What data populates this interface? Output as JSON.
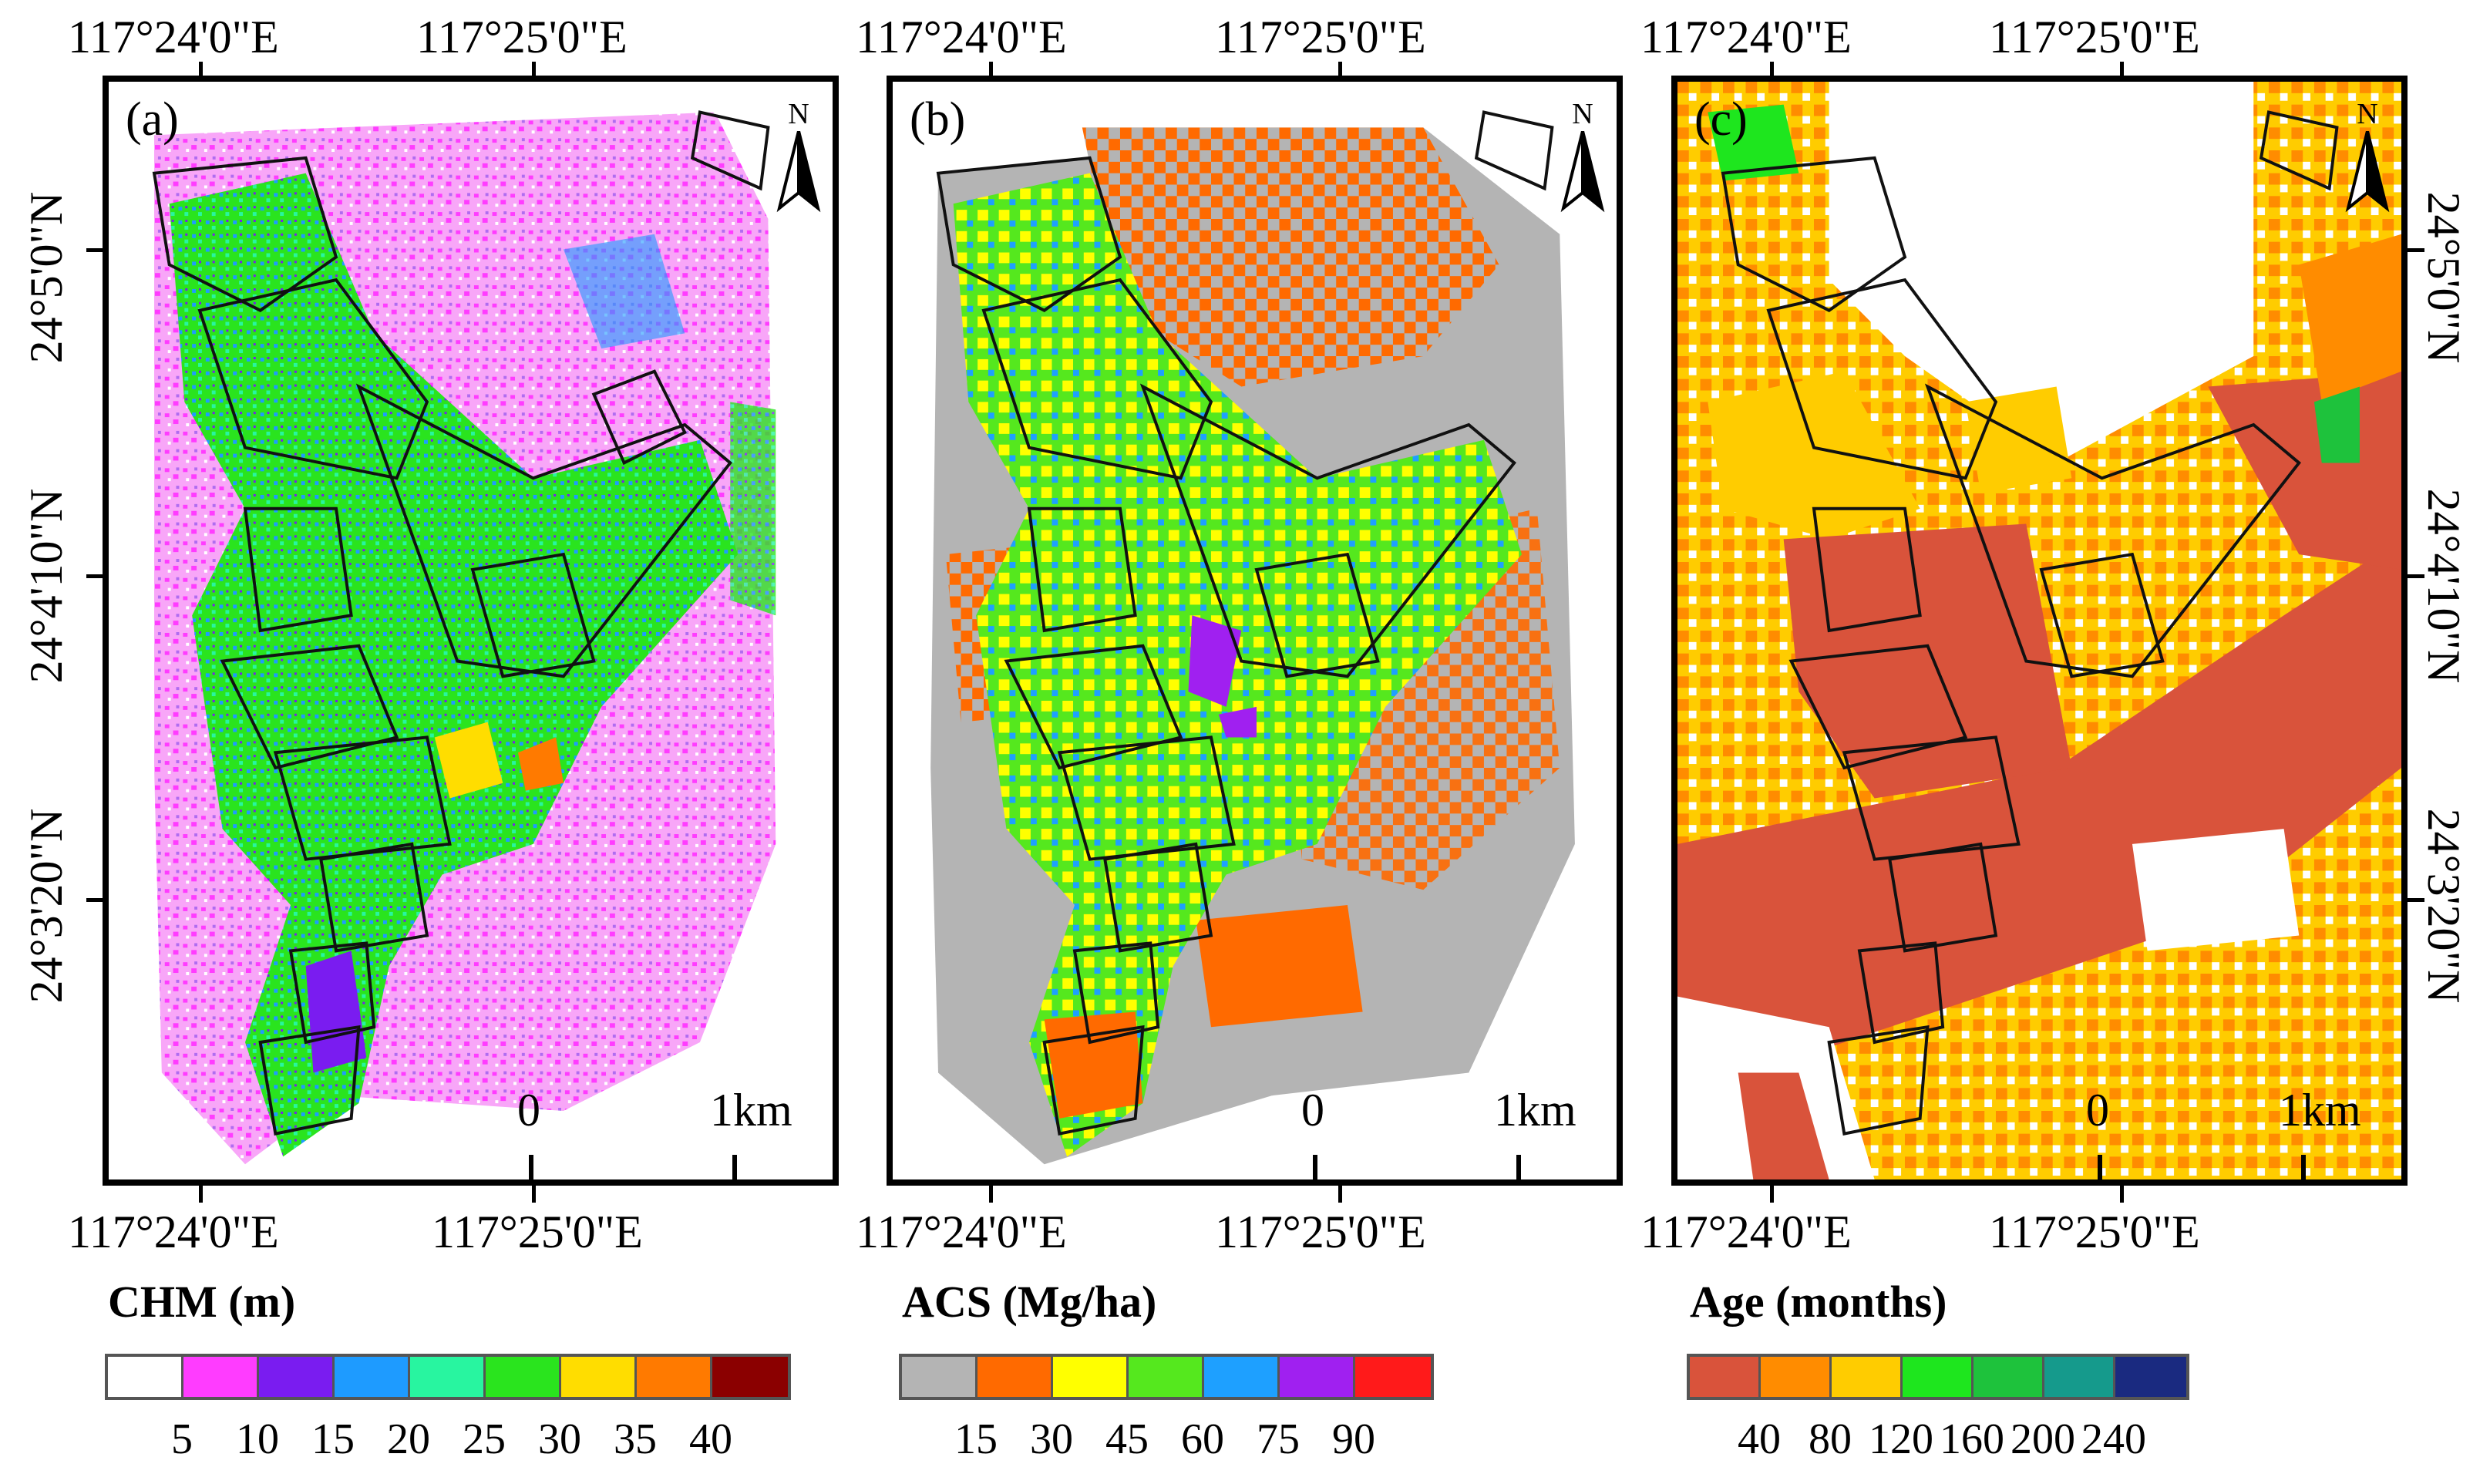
{
  "figure": {
    "panels": [
      {
        "id": "a",
        "label": "(a)",
        "north": "N",
        "lon_labels": [
          "117°24'0\"E",
          "117°25'0\"E"
        ],
        "lat_labels": [
          "24°5'0\"N",
          "24°4'10\"N",
          "24°3'20\"N"
        ],
        "scale": {
          "start": "0",
          "end": "1km"
        },
        "legend": {
          "title": "CHM (m)",
          "colors": [
            "#ffffff",
            "#ff3cff",
            "#7a1cf0",
            "#1e9bff",
            "#28f5a0",
            "#2ae41e",
            "#ffdd00",
            "#ff7a00",
            "#8b0000"
          ],
          "ticks": [
            "5",
            "10",
            "15",
            "20",
            "25",
            "30",
            "35",
            "40"
          ]
        }
      },
      {
        "id": "b",
        "label": "(b)",
        "north": "N",
        "lon_labels": [
          "117°24'0\"E",
          "117°25'0\"E"
        ],
        "scale": {
          "start": "0",
          "end": "1km"
        },
        "legend": {
          "title": "ACS (Mg/ha)",
          "colors": [
            "#b4b4b4",
            "#ff6a00",
            "#ffff00",
            "#55e81e",
            "#1ea0ff",
            "#a020f0",
            "#ff1a1a"
          ],
          "ticks": [
            "15",
            "30",
            "45",
            "60",
            "75",
            "90"
          ]
        }
      },
      {
        "id": "c",
        "label": "(c)",
        "north": "N",
        "lon_labels": [
          "117°24'0\"E",
          "117°25'0\"E"
        ],
        "lat_labels": [
          "24°5'0\"N",
          "24°4'10\"N",
          "24°3'20\"N"
        ],
        "scale": {
          "start": "0",
          "end": "1km"
        },
        "legend": {
          "title": "Age (months)",
          "colors": [
            "#d9533b",
            "#ff8c00",
            "#ffcc00",
            "#1ee61e",
            "#1ec23c",
            "#159a8c",
            "#1a2a80"
          ],
          "ticks": [
            "40",
            "80",
            "120",
            "160",
            "200",
            "240"
          ]
        }
      }
    ]
  }
}
